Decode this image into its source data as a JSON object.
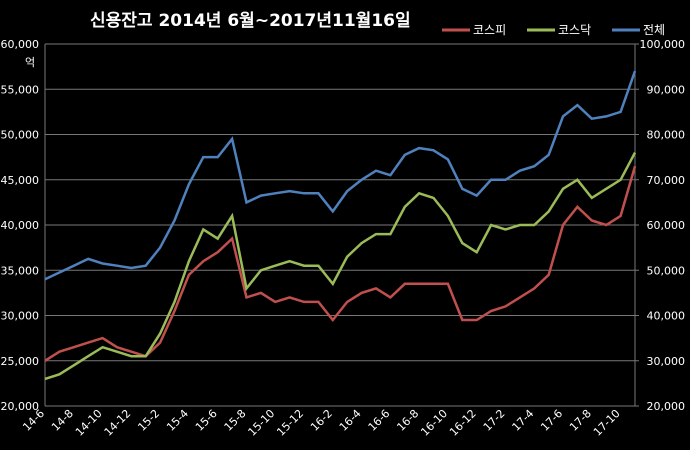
{
  "chart_data": {
    "type": "line",
    "title": "신용잔고  2014년 6월~2017년11월16일",
    "y_unit": "억",
    "categories": [
      "14-6",
      null,
      "14-8",
      null,
      "14-10",
      null,
      "14-12",
      null,
      "15-2",
      null,
      "15-4",
      null,
      "15-6",
      null,
      "15-8",
      null,
      "15-10",
      null,
      "15-12",
      null,
      "16-2",
      null,
      "16-4",
      null,
      "16-6",
      null,
      "16-8",
      null,
      "16-10",
      null,
      "16-12",
      null,
      "17-2",
      null,
      "17-4",
      null,
      "17-6",
      null,
      "17-8",
      null,
      "17-10",
      null
    ],
    "series": [
      {
        "name": "코스피",
        "color": "#c0504d",
        "values": [
          25000,
          26000,
          26500,
          27000,
          27500,
          26500,
          26000,
          25500,
          27000,
          30500,
          34500,
          36000,
          37000,
          38500,
          32000,
          32500,
          31500,
          32000,
          31500,
          31500,
          29500,
          31500,
          32500,
          33000,
          32000,
          33500,
          33500,
          33500,
          33500,
          29500,
          29500,
          30500,
          31000,
          32000,
          33000,
          34500,
          40000,
          42000,
          40500,
          40000,
          41000,
          46500
        ]
      },
      {
        "name": "코스닥",
        "color": "#9bbb59",
        "values": [
          23000,
          23500,
          24500,
          25500,
          26500,
          26000,
          25500,
          25500,
          28000,
          31500,
          36000,
          39500,
          38500,
          41000,
          33000,
          35000,
          35500,
          36000,
          35500,
          35500,
          33500,
          36500,
          38000,
          39000,
          39000,
          42000,
          43500,
          43000,
          41000,
          38000,
          37000,
          40000,
          39500,
          40000,
          40000,
          41500,
          44000,
          45000,
          43000,
          44000,
          45000,
          48000
        ]
      },
      {
        "name": "전체",
        "color": "#4f81bd",
        "axis": "y2",
        "values": [
          48000,
          49500,
          51000,
          52500,
          51500,
          51000,
          50500,
          51000,
          55000,
          61000,
          69000,
          75000,
          75000,
          79000,
          65000,
          66500,
          67000,
          67500,
          67000,
          67000,
          63000,
          67500,
          70000,
          72000,
          71000,
          75500,
          77000,
          76500,
          74500,
          68000,
          66500,
          70000,
          70000,
          72000,
          73000,
          75500,
          84000,
          86500,
          83500,
          84000,
          85000,
          94000
        ]
      }
    ],
    "ylim": [
      20000,
      60000
    ],
    "yticks": [
      {
        "value": 20000,
        "label": "20,000"
      },
      {
        "value": 25000,
        "label": "25,000"
      },
      {
        "value": 30000,
        "label": "30,000"
      },
      {
        "value": 35000,
        "label": "35,000"
      },
      {
        "value": 40000,
        "label": "40,000"
      },
      {
        "value": 45000,
        "label": "45,000"
      },
      {
        "value": 50000,
        "label": "50,000"
      },
      {
        "value": 55000,
        "label": "55,000"
      },
      {
        "value": 60000,
        "label": "60,000"
      }
    ],
    "y2lim": [
      20000,
      100000
    ],
    "y2ticks": [
      {
        "value": 20000,
        "label": "20,000"
      },
      {
        "value": 30000,
        "label": "30,000"
      },
      {
        "value": 40000,
        "label": "40,000"
      },
      {
        "value": 50000,
        "label": "50,000"
      },
      {
        "value": 60000,
        "label": "60,000"
      },
      {
        "value": 70000,
        "label": "70,000"
      },
      {
        "value": 80000,
        "label": "80,000"
      },
      {
        "value": 90000,
        "label": "90,000"
      },
      {
        "value": 100000,
        "label": "100,000"
      }
    ],
    "grid": true
  }
}
